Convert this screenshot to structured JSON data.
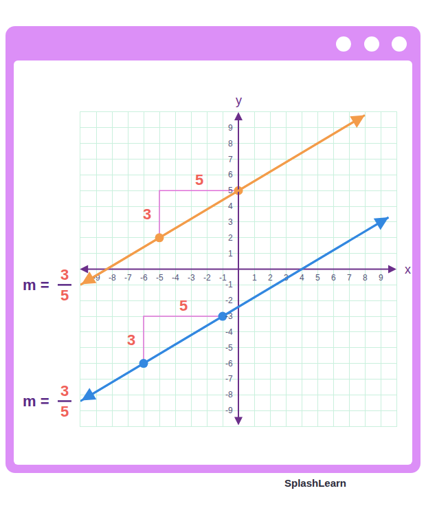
{
  "chart_data": {
    "type": "line",
    "x_label": "x",
    "y_label": "y",
    "xlim": [
      -10,
      10
    ],
    "ylim": [
      -10,
      10
    ],
    "xticks": [
      -9,
      -8,
      -7,
      -6,
      -5,
      -4,
      -3,
      -2,
      -1,
      1,
      2,
      3,
      4,
      5,
      6,
      7,
      8,
      9
    ],
    "yticks": [
      -9,
      -8,
      -7,
      -6,
      -5,
      -4,
      -3,
      -2,
      -1,
      1,
      2,
      3,
      4,
      5,
      6,
      7,
      8,
      9
    ],
    "grid": true,
    "series": [
      {
        "color": "#f39c4a",
        "line_style": "solid",
        "marker": "circle",
        "x": [
          -10,
          -5,
          0,
          8
        ],
        "values": [
          -1,
          2,
          5,
          9.8
        ],
        "marked_points": {
          "x": [
            -5,
            0
          ],
          "values": [
            2,
            5
          ]
        },
        "rise": 3,
        "run": 5,
        "slope": {
          "label": "m =",
          "numerator": 3,
          "denominator": 5
        }
      },
      {
        "color": "#3388e0",
        "line_style": "solid",
        "marker": "circle",
        "x": [
          -10,
          -6,
          -1,
          9.5
        ],
        "values": [
          -8.4,
          -6,
          -3,
          3.3
        ],
        "marked_points": {
          "x": [
            -6,
            -1
          ],
          "values": [
            -6,
            -3
          ]
        },
        "rise": 3,
        "run": 5,
        "slope": {
          "label": "m =",
          "numerator": 3,
          "denominator": 5
        }
      }
    ]
  },
  "footer": "SplashLearn"
}
